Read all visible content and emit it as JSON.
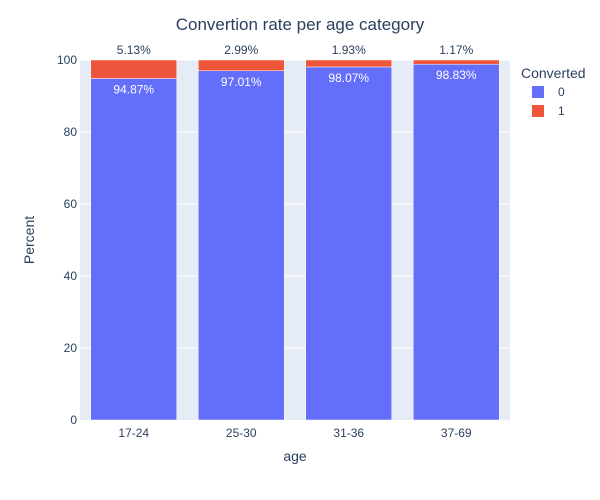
{
  "chart_data": {
    "type": "bar",
    "stacked": true,
    "title": "Convertion rate per age category",
    "xlabel": "age",
    "ylabel": "Percent",
    "categories": [
      "17-24",
      "25-30",
      "31-36",
      "37-69"
    ],
    "ylim": [
      0,
      100
    ],
    "yticks": [
      0,
      20,
      40,
      60,
      80,
      100
    ],
    "grid": true,
    "legend": {
      "title": "Converted",
      "placement": "top-right"
    },
    "series": [
      {
        "name": "0",
        "color": "#636efa",
        "values": [
          94.87,
          97.01,
          98.07,
          98.83
        ],
        "labels": [
          "94.87%",
          "97.01%",
          "98.07%",
          "98.83%"
        ]
      },
      {
        "name": "1",
        "color": "#ef553b",
        "values": [
          5.13,
          2.99,
          1.93,
          1.17
        ],
        "labels": [
          "5.13%",
          "2.99%",
          "1.93%",
          "1.17%"
        ]
      }
    ]
  }
}
